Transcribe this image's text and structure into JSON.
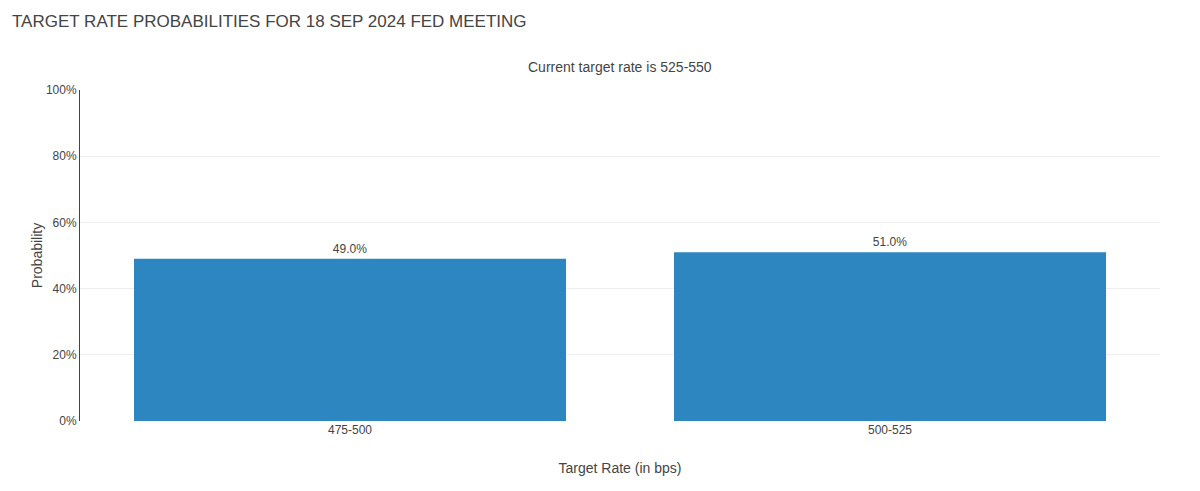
{
  "chart_data": {
    "type": "bar",
    "title": "TARGET RATE PROBABILITIES FOR 18 SEP 2024 FED MEETING",
    "subtitle": "Current target rate is 525-550",
    "xlabel": "Target Rate (in bps)",
    "ylabel": "Probability",
    "categories": [
      "475-500",
      "500-525"
    ],
    "values": [
      49.0,
      51.0
    ],
    "value_labels": [
      "49.0%",
      "51.0%"
    ],
    "data_labels": true,
    "color": "#2e86c1",
    "ylim": [
      0,
      100
    ],
    "yticks": [
      {
        "value": 0,
        "label": "0%"
      },
      {
        "value": 20,
        "label": "20%"
      },
      {
        "value": 40,
        "label": "40%"
      },
      {
        "value": 60,
        "label": "60%"
      },
      {
        "value": 80,
        "label": "80%"
      },
      {
        "value": 100,
        "label": "100%"
      }
    ],
    "grid": true
  }
}
